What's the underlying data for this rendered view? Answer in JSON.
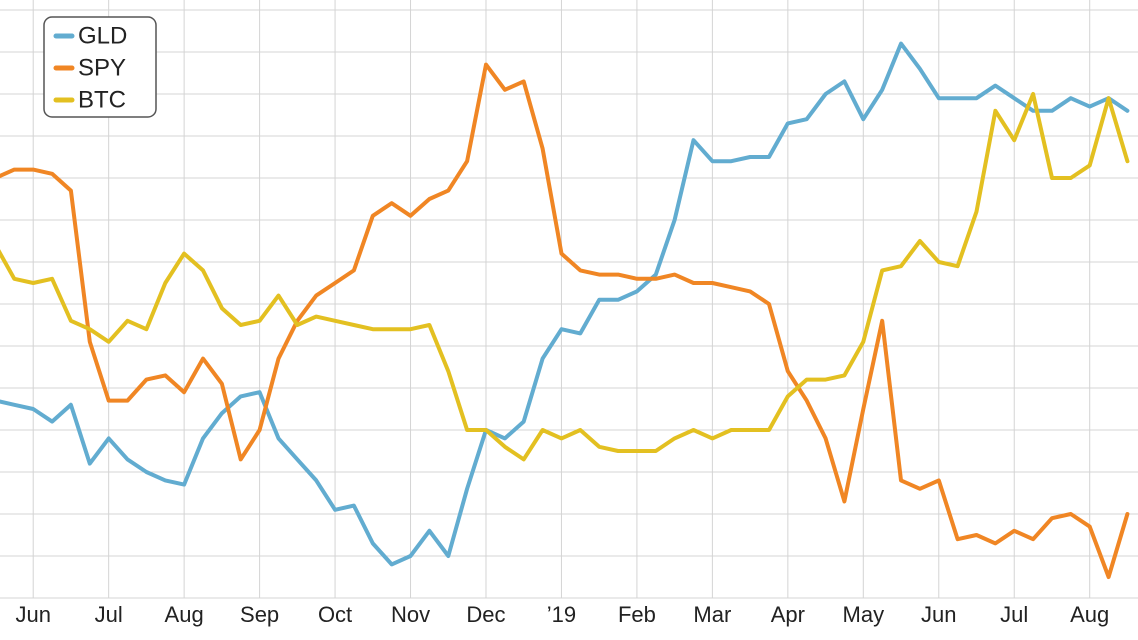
{
  "chart_data": {
    "type": "line",
    "x": [
      -0.5,
      -0.25,
      0,
      0.25,
      0.5,
      0.75,
      1,
      1.25,
      1.5,
      1.75,
      2,
      2.25,
      2.5,
      2.75,
      3,
      3.25,
      3.5,
      3.75,
      4,
      4.25,
      4.5,
      4.75,
      5,
      5.25,
      5.5,
      5.75,
      6,
      6.25,
      6.5,
      6.75,
      7,
      7.25,
      7.5,
      7.75,
      8,
      8.25,
      8.5,
      8.75,
      9,
      9.25,
      9.5,
      9.75,
      10,
      10.25,
      10.5,
      10.75,
      11,
      11.25,
      11.5,
      11.75,
      12,
      12.25,
      12.5,
      12.75,
      13,
      13.25,
      13.5,
      13.75,
      14,
      14.25,
      14.5
    ],
    "series": [
      {
        "name": "GLD",
        "color": "#62acd0",
        "values": [
          4.7,
          4.6,
          4.5,
          4.2,
          4.6,
          3.2,
          3.8,
          3.3,
          3.0,
          2.8,
          2.7,
          3.8,
          4.4,
          4.8,
          4.9,
          3.8,
          3.3,
          2.8,
          2.1,
          2.2,
          1.3,
          0.8,
          1.0,
          1.6,
          1.0,
          2.6,
          4.0,
          3.8,
          4.2,
          5.7,
          6.4,
          6.3,
          7.1,
          7.1,
          7.3,
          7.7,
          9.0,
          10.9,
          10.4,
          10.4,
          10.5,
          10.5,
          11.3,
          11.4,
          12.0,
          12.3,
          11.4,
          12.1,
          13.2,
          12.6,
          11.9,
          11.9,
          11.9,
          12.2,
          11.9,
          11.6,
          11.6,
          11.9,
          11.7,
          11.9,
          11.6
        ]
      },
      {
        "name": "SPY",
        "color": "#f08624",
        "values": [
          10.0,
          10.2,
          10.2,
          10.1,
          9.7,
          6.1,
          4.7,
          4.7,
          5.2,
          5.3,
          4.9,
          5.7,
          5.1,
          3.3,
          4.0,
          5.7,
          6.6,
          7.2,
          7.5,
          7.8,
          9.1,
          9.4,
          9.1,
          9.5,
          9.7,
          10.4,
          12.7,
          12.1,
          12.3,
          10.7,
          8.2,
          7.8,
          7.7,
          7.7,
          7.6,
          7.6,
          7.7,
          7.5,
          7.5,
          7.4,
          7.3,
          7.0,
          5.4,
          4.7,
          3.8,
          2.3,
          4.5,
          6.6,
          2.8,
          2.6,
          2.8,
          1.4,
          1.5,
          1.3,
          1.6,
          1.4,
          1.9,
          2.0,
          1.7,
          0.5,
          2.0
        ]
      },
      {
        "name": "BTC",
        "color": "#e3c021",
        "values": [
          8.4,
          7.6,
          7.5,
          7.6,
          6.6,
          6.4,
          6.1,
          6.6,
          6.4,
          7.5,
          8.2,
          7.8,
          6.9,
          6.5,
          6.6,
          7.2,
          6.5,
          6.7,
          6.6,
          6.5,
          6.4,
          6.4,
          6.4,
          6.5,
          5.4,
          4.0,
          4.0,
          3.6,
          3.3,
          4.0,
          3.8,
          4.0,
          3.6,
          3.5,
          3.5,
          3.5,
          3.8,
          4.0,
          3.8,
          4.0,
          4.0,
          4.0,
          4.8,
          5.2,
          5.2,
          5.3,
          6.1,
          7.8,
          7.9,
          8.5,
          8.0,
          7.9,
          9.2,
          11.6,
          10.9,
          12.0,
          10.0,
          10.0,
          10.3,
          11.9,
          10.4
        ]
      }
    ],
    "xlim": [
      -0.44,
      14.64
    ],
    "xticks": [
      {
        "value": 0,
        "label": "Jun"
      },
      {
        "value": 1,
        "label": "Jul"
      },
      {
        "value": 2,
        "label": "Aug"
      },
      {
        "value": 3,
        "label": "Sep"
      },
      {
        "value": 4,
        "label": "Oct"
      },
      {
        "value": 5,
        "label": "Nov"
      },
      {
        "value": 6,
        "label": "Dec"
      },
      {
        "value": 7,
        "label": "’19"
      },
      {
        "value": 8,
        "label": "Feb"
      },
      {
        "value": 9,
        "label": "Mar"
      },
      {
        "value": 10,
        "label": "Apr"
      },
      {
        "value": 11,
        "label": "May"
      },
      {
        "value": 12,
        "label": "Jun"
      },
      {
        "value": 13,
        "label": "Jul"
      },
      {
        "value": 14,
        "label": "Aug"
      }
    ],
    "ylim": [
      0,
      14
    ],
    "yticks": [
      0,
      1,
      2,
      3,
      4,
      5,
      6,
      7,
      8,
      9,
      10,
      11,
      12,
      13,
      14
    ],
    "grid": true,
    "legend": "upper left"
  }
}
